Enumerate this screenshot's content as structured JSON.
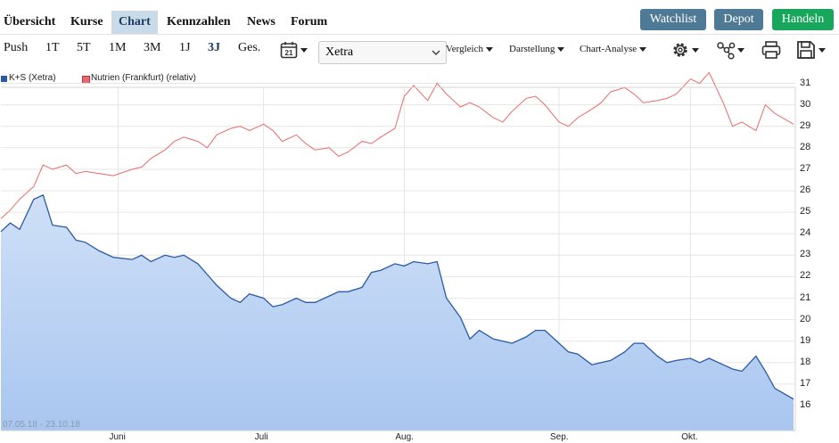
{
  "nav": {
    "tabs": [
      {
        "label": "Übersicht",
        "active": false
      },
      {
        "label": "Kurse",
        "active": false
      },
      {
        "label": "Chart",
        "active": true
      },
      {
        "label": "Kennzahlen",
        "active": false
      },
      {
        "label": "News",
        "active": false
      },
      {
        "label": "Forum",
        "active": false
      }
    ],
    "buttons": {
      "watchlist": "Watchlist",
      "depot": "Depot",
      "handeln": "Handeln"
    }
  },
  "toolbar": {
    "ranges": [
      {
        "label": "Push",
        "active": false
      },
      {
        "label": "1T",
        "active": false
      },
      {
        "label": "5T",
        "active": false
      },
      {
        "label": "1M",
        "active": false
      },
      {
        "label": "3M",
        "active": false
      },
      {
        "label": "1J",
        "active": false
      },
      {
        "label": "3J",
        "active": true
      },
      {
        "label": "Ges.",
        "active": false
      }
    ],
    "calendar_day": "21",
    "exchange_select": "Xetra",
    "menus": {
      "vergleich": "Vergleich",
      "darstellung": "Darstellung",
      "analyse": "Chart-Analyse"
    }
  },
  "colors": {
    "primary_line": "#2a5aa6",
    "area_top": "#cfe0f7",
    "area_bottom": "#a9c6f0",
    "comparison_line": "#e86a6a",
    "nav_button": "#4f7a96",
    "handeln_button": "#17a65a"
  },
  "chart_data": {
    "type": "area",
    "date_range": "07.05.18 - 23.10.18",
    "ylim": [
      15,
      32
    ],
    "yticks": [
      "16",
      "17",
      "18",
      "19",
      "20",
      "21",
      "22",
      "23",
      "24",
      "25",
      "26",
      "27",
      "28",
      "29",
      "30",
      "31"
    ],
    "xticks": [
      "Juni",
      "Juli",
      "Aug.",
      "Sep.",
      "Okt."
    ],
    "legend": [
      {
        "name": "K+S (Xetra)",
        "color": "#2a5aa6"
      },
      {
        "name": "Nutrien (Frankfurt) (relativ)",
        "color": "#e86a6a"
      }
    ],
    "x_dates": [
      "2018-05-07",
      "2018-05-09",
      "2018-05-11",
      "2018-05-14",
      "2018-05-16",
      "2018-05-18",
      "2018-05-21",
      "2018-05-23",
      "2018-05-25",
      "2018-05-28",
      "2018-05-31",
      "2018-06-04",
      "2018-06-06",
      "2018-06-08",
      "2018-06-11",
      "2018-06-13",
      "2018-06-15",
      "2018-06-18",
      "2018-06-20",
      "2018-06-22",
      "2018-06-25",
      "2018-06-27",
      "2018-06-29",
      "2018-07-02",
      "2018-07-04",
      "2018-07-06",
      "2018-07-09",
      "2018-07-11",
      "2018-07-13",
      "2018-07-16",
      "2018-07-18",
      "2018-07-20",
      "2018-07-23",
      "2018-07-25",
      "2018-07-27",
      "2018-07-30",
      "2018-08-01",
      "2018-08-03",
      "2018-08-06",
      "2018-08-08",
      "2018-08-10",
      "2018-08-13",
      "2018-08-15",
      "2018-08-17",
      "2018-08-20",
      "2018-08-22",
      "2018-08-24",
      "2018-08-27",
      "2018-08-29",
      "2018-08-31",
      "2018-09-03",
      "2018-09-05",
      "2018-09-07",
      "2018-09-10",
      "2018-09-12",
      "2018-09-14",
      "2018-09-17",
      "2018-09-19",
      "2018-09-21",
      "2018-09-24",
      "2018-09-26",
      "2018-09-28",
      "2018-10-01",
      "2018-10-03",
      "2018-10-05",
      "2018-10-08",
      "2018-10-10",
      "2018-10-12",
      "2018-10-15",
      "2018-10-17",
      "2018-10-19",
      "2018-10-23"
    ],
    "series": [
      {
        "name": "K+S (Xetra)",
        "values": [
          24.1,
          24.5,
          24.2,
          25.6,
          25.8,
          24.4,
          24.3,
          23.7,
          23.6,
          23.2,
          22.9,
          22.8,
          23.0,
          22.7,
          23.0,
          22.9,
          23.0,
          22.6,
          22.1,
          21.6,
          21.0,
          20.8,
          21.2,
          21.0,
          20.6,
          20.7,
          21.0,
          20.8,
          20.8,
          21.1,
          21.3,
          21.3,
          21.5,
          22.2,
          22.3,
          22.6,
          22.5,
          22.7,
          22.6,
          22.7,
          21.0,
          20.1,
          19.1,
          19.5,
          19.1,
          19.0,
          18.9,
          19.2,
          19.5,
          19.5,
          18.9,
          18.5,
          18.4,
          17.9,
          18.0,
          18.1,
          18.5,
          18.9,
          18.9,
          18.3,
          18.0,
          18.1,
          18.2,
          18.0,
          18.2,
          17.9,
          17.7,
          17.6,
          18.3,
          17.6,
          16.8,
          16.3
        ]
      },
      {
        "name": "Nutrien (Frankfurt) (relativ)",
        "values": [
          24.7,
          25.1,
          25.6,
          26.2,
          27.2,
          27.0,
          27.2,
          26.8,
          26.9,
          26.8,
          26.7,
          27.0,
          27.1,
          27.5,
          27.9,
          28.3,
          28.5,
          28.3,
          28.0,
          28.6,
          28.9,
          29.0,
          28.8,
          29.1,
          28.8,
          28.3,
          28.6,
          28.2,
          27.9,
          28.0,
          27.6,
          27.8,
          28.3,
          28.2,
          28.5,
          28.9,
          30.4,
          30.9,
          30.2,
          31.0,
          30.5,
          29.9,
          30.1,
          29.9,
          29.4,
          29.2,
          29.7,
          30.3,
          30.4,
          30.0,
          29.2,
          29.0,
          29.4,
          29.8,
          30.1,
          30.6,
          30.8,
          30.5,
          30.1,
          30.2,
          30.3,
          30.5,
          31.2,
          31.0,
          31.5,
          30.1,
          29.0,
          29.2,
          28.8,
          30.0,
          29.6,
          29.1
        ]
      }
    ]
  }
}
